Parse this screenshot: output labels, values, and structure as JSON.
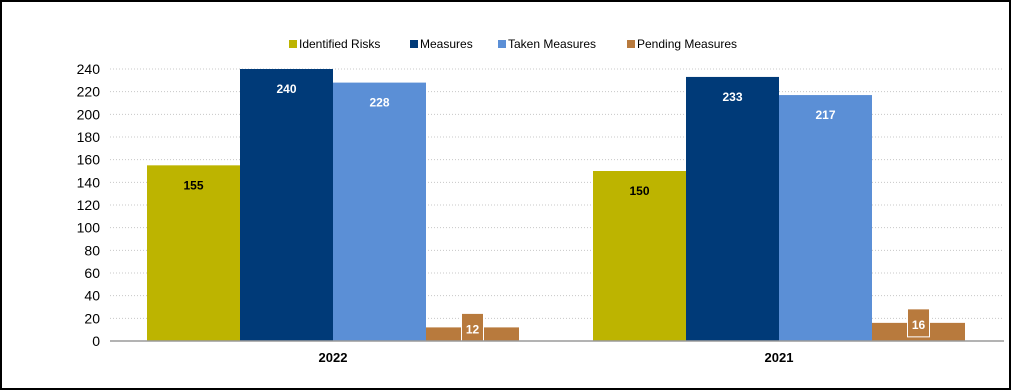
{
  "chart_data": {
    "type": "bar",
    "title": "",
    "xlabel": "",
    "ylabel": "",
    "categories": [
      "2022",
      "2021"
    ],
    "series": [
      {
        "name": "Identified Risks",
        "values": [
          155,
          150
        ],
        "color": "#BDB400",
        "label_color": "#000000"
      },
      {
        "name": "Measures",
        "values": [
          240,
          233
        ],
        "color": "#003A78",
        "label_color": "#FFFFFF"
      },
      {
        "name": "Taken Measures",
        "values": [
          228,
          217
        ],
        "color": "#5B8FD6",
        "label_color": "#FFFFFF"
      },
      {
        "name": "Pending Measures",
        "values": [
          12,
          16
        ],
        "color": "#B87A3D",
        "label_color": "#FFFFFF"
      }
    ],
    "ylim": [
      0,
      240
    ],
    "yticks": [
      0,
      20,
      40,
      60,
      80,
      100,
      120,
      140,
      160,
      180,
      200,
      220,
      240
    ],
    "grid": true,
    "legend_position": "top"
  }
}
